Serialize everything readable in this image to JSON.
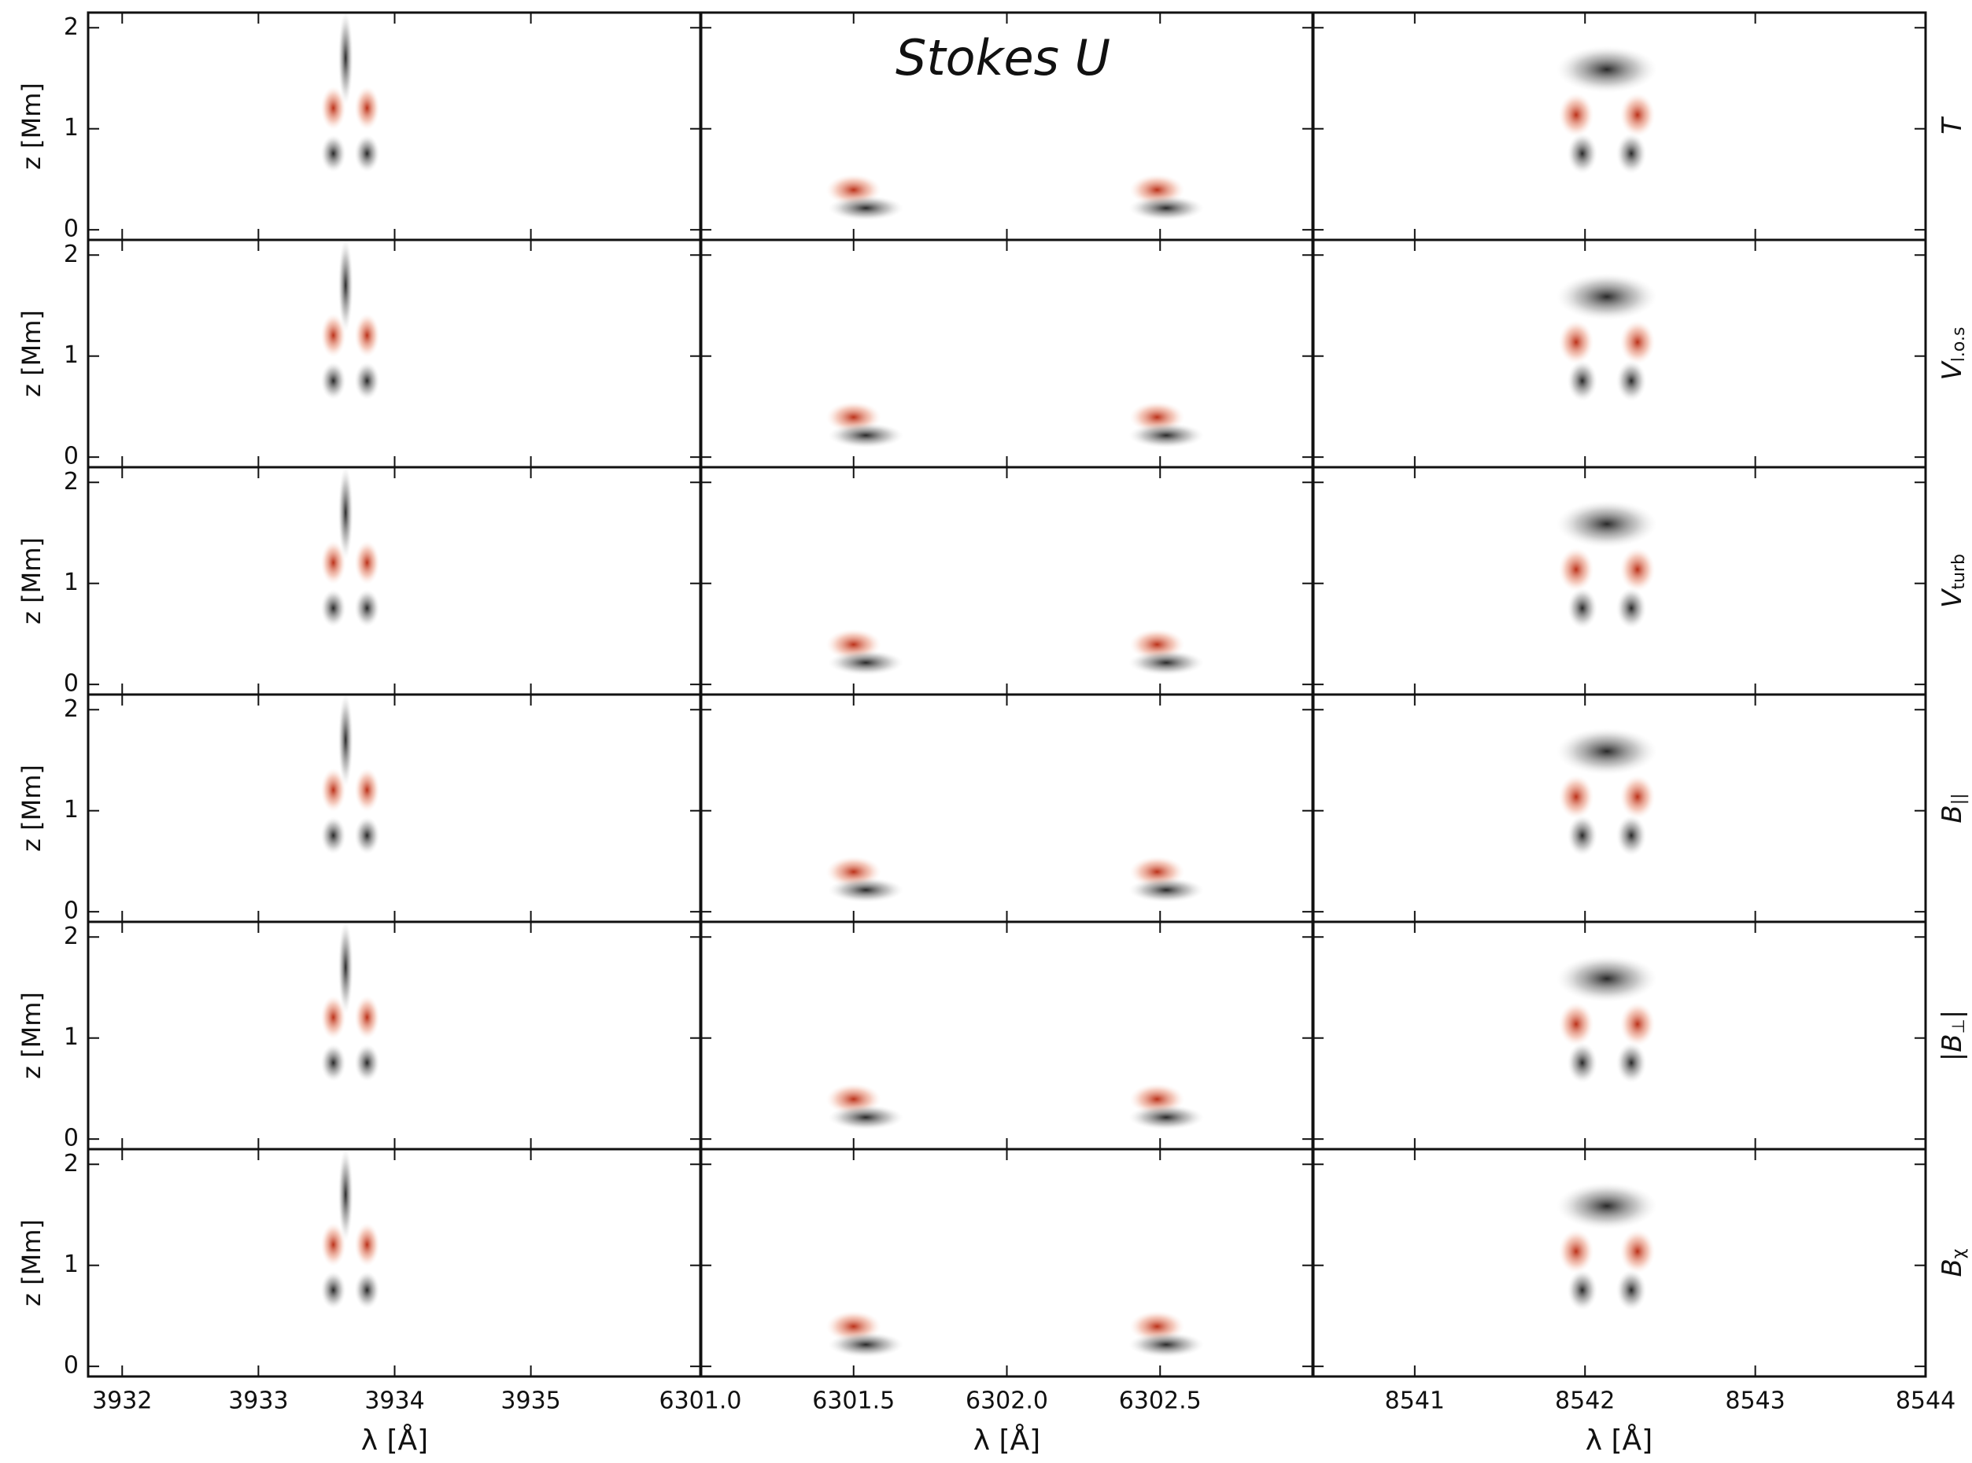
{
  "chart_data": {
    "type": "heatmap-grid",
    "title": "Stokes U",
    "xlabel": "λ [Å]",
    "ylabel": "z [Mm]",
    "ylim": [
      -0.1,
      2.15
    ],
    "yticks": [
      0,
      1,
      2
    ],
    "columns": [
      {
        "xlim": [
          3931.75,
          3936.25
        ],
        "xticks": [
          3932,
          3933,
          3934,
          3935
        ]
      },
      {
        "xlim": [
          6301.0,
          6303.0
        ],
        "xticks": [
          {
            "value": 6301.0,
            "label": "6301.0"
          },
          {
            "value": 6301.5,
            "label": "6301.5"
          },
          {
            "value": 6302.0,
            "label": "6302.0"
          },
          {
            "value": 6302.5,
            "label": "6302.5"
          }
        ]
      },
      {
        "xlim": [
          8540.4,
          8544
        ],
        "xticks": [
          8541,
          8542,
          8543,
          8544
        ]
      }
    ],
    "rows": [
      {
        "symbol": "T"
      },
      {
        "symbol": "V",
        "subscript": "l.o.s"
      },
      {
        "symbol": "V",
        "subscript": "turb"
      },
      {
        "symbol": "B",
        "subscript": "||"
      },
      {
        "symbol": "|B",
        "subscript": "⊥",
        "suffix": "|"
      },
      {
        "symbol": "B",
        "subscript": "χ"
      }
    ]
  }
}
